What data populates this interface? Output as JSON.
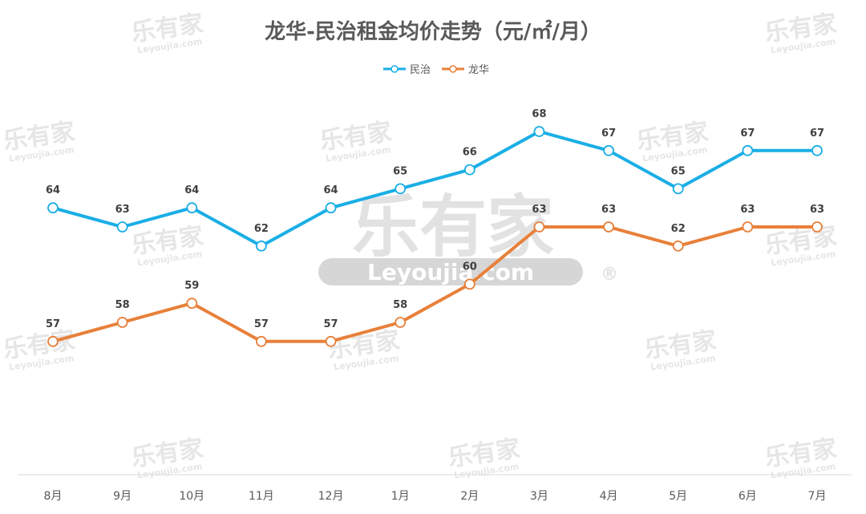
{
  "chart_data": {
    "type": "line",
    "title": "龙华-民治租金均价走势（元/㎡/月）",
    "categories": [
      "8月",
      "9月",
      "10月",
      "11月",
      "12月",
      "1月",
      "2月",
      "3月",
      "4月",
      "5月",
      "6月",
      "7月"
    ],
    "series": [
      {
        "name": "民治",
        "color": "#1aaee6",
        "values": [
          64,
          63,
          64,
          62,
          64,
          65,
          66,
          68,
          67,
          65,
          67,
          67
        ]
      },
      {
        "name": "龙华",
        "color": "#e8803a",
        "values": [
          57,
          58,
          59,
          57,
          57,
          58,
          60,
          63,
          63,
          62,
          63,
          63
        ]
      }
    ],
    "legend_position": "top-center",
    "grid": false,
    "data_labels": true
  },
  "watermark": {
    "brand": "乐有家",
    "site": "Leyoujia.com",
    "mark": "®"
  }
}
